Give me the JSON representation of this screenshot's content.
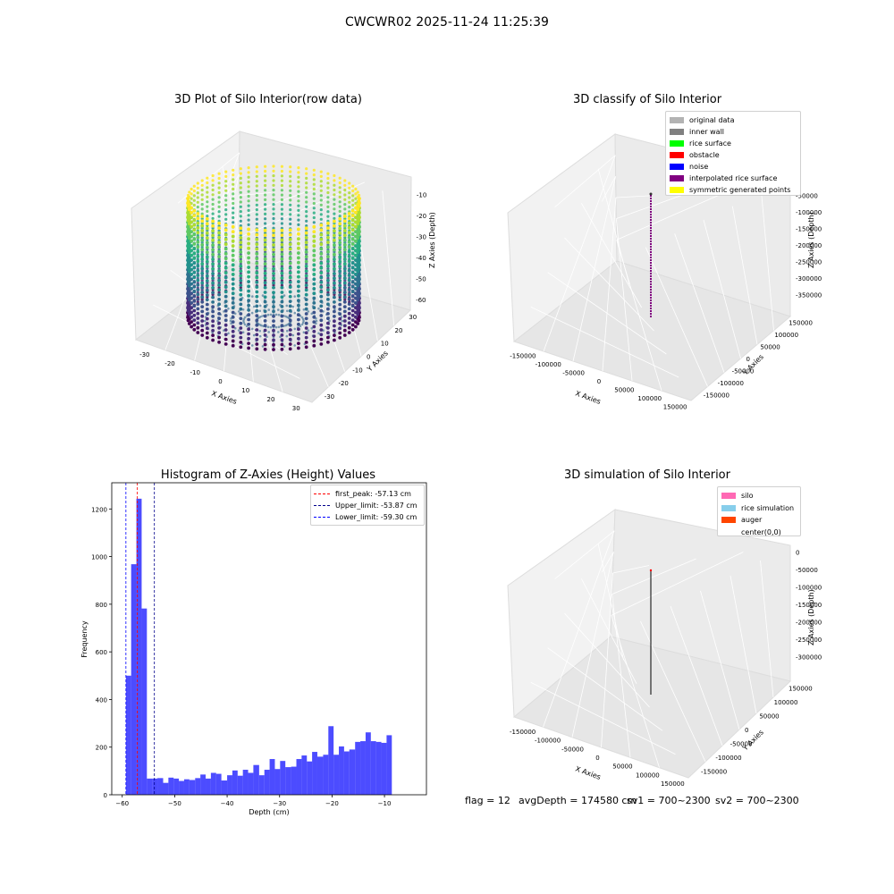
{
  "suptitle": "CWCWR02 2025-11-24 11:25:39",
  "panels": {
    "raw": {
      "title": "3D Plot of Silo Interior(row data)",
      "xlabel": "X Axies",
      "ylabel": "Y Axies",
      "zlabel": "Z Axies (Depth)",
      "xticks": [
        "-30",
        "-20",
        "-10",
        "0",
        "10",
        "20",
        "30"
      ],
      "yticks": [
        "-30",
        "-20",
        "-10",
        "0",
        "10",
        "20",
        "30"
      ],
      "zticks": [
        "-10",
        "-20",
        "-30",
        "-40",
        "-50",
        "-60"
      ]
    },
    "classify": {
      "title": "3D classify of Silo Interior",
      "xlabel": "X Axies",
      "ylabel": "Y Axies",
      "zlabel": "Z Axies (Depth)",
      "xticks": [
        "-150000",
        "-100000",
        "-50000",
        "0",
        "50000",
        "100000",
        "150000"
      ],
      "yticks": [
        "-150000",
        "-100000",
        "-50000",
        "0",
        "50000",
        "100000",
        "150000"
      ],
      "zticks": [
        "0",
        "-50000",
        "-100000",
        "-150000",
        "-200000",
        "-250000",
        "-300000",
        "-350000"
      ],
      "legend": [
        {
          "label": "original data",
          "color": "#b3b3b3"
        },
        {
          "label": "inner wall",
          "color": "#808080"
        },
        {
          "label": "rice surface",
          "color": "#00ff00"
        },
        {
          "label": "obstacle",
          "color": "#ff0000"
        },
        {
          "label": "noise",
          "color": "#0000ff"
        },
        {
          "label": "interpolated rice surface",
          "color": "#800080"
        },
        {
          "label": "symmetric generated points",
          "color": "#ffff00"
        }
      ]
    },
    "simulation": {
      "title": "3D simulation of Silo Interior",
      "xlabel": "X Axies",
      "ylabel": "Y Axies",
      "zlabel": "Z Axies (Depth)",
      "xticks": [
        "-150000",
        "-100000",
        "-50000",
        "0",
        "50000",
        "100000",
        "150000"
      ],
      "yticks": [
        "-150000",
        "-100000",
        "-50000",
        "0",
        "50000",
        "100000",
        "150000"
      ],
      "zticks": [
        "0",
        "-50000",
        "-100000",
        "-150000",
        "-200000",
        "-250000",
        "-300000"
      ],
      "legend": [
        {
          "label": "silo",
          "color": "#ff69b4"
        },
        {
          "label": "rice simulation",
          "color": "#87ceeb"
        },
        {
          "label": "auger",
          "color": "#ff4500"
        },
        {
          "label": "center(0,0)",
          "color": "#ffffff"
        }
      ]
    }
  },
  "status": {
    "flag": "flag = 12",
    "avg_depth": "avgDepth = 174580 cm",
    "sv1": "sv1 = 700~2300",
    "sv2": "sv2 = 700~2300"
  },
  "chart_data": [
    {
      "type": "scatter",
      "title": "3D Plot of Silo Interior(row data)",
      "xlabel": "X Axies",
      "ylabel": "Y Axies",
      "zlabel": "Z Axies (Depth)",
      "xlim": [
        -35,
        35
      ],
      "ylim": [
        -35,
        35
      ],
      "zlim": [
        -64,
        -5
      ],
      "colormap": "viridis",
      "grid": true
    },
    {
      "type": "scatter",
      "title": "3D classify of Silo Interior",
      "xlabel": "X Axies",
      "ylabel": "Y Axies",
      "zlabel": "Z Axies (Depth)",
      "xlim": [
        -180000,
        180000
      ],
      "ylim": [
        -180000,
        180000
      ],
      "zlim": [
        -380000,
        20000
      ],
      "legend_position": "top-right",
      "grid": true
    },
    {
      "type": "bar",
      "title": "Histogram of Z-Axies (Height) Values",
      "xlabel": "Depth (cm)",
      "ylabel": "Frequency",
      "xlim": [
        -62,
        -2
      ],
      "ylim": [
        0,
        1310
      ],
      "bar_color": "#0000ff",
      "xticks": [
        -60,
        -50,
        -40,
        -30,
        -20,
        -10
      ],
      "yticks": [
        0,
        200,
        400,
        600,
        800,
        1000,
        1200
      ],
      "bins": [
        {
          "x0": -59.3,
          "x1": -58.3,
          "value": 500
        },
        {
          "x0": -58.3,
          "x1": -57.3,
          "value": 968
        },
        {
          "x0": -57.3,
          "x1": -56.3,
          "value": 1243
        },
        {
          "x0": -56.3,
          "x1": -55.3,
          "value": 782
        },
        {
          "x0": -55.3,
          "x1": -54.3,
          "value": 68
        },
        {
          "x0": -54.3,
          "x1": -53.3,
          "value": 68
        },
        {
          "x0": -53.3,
          "x1": -52.2,
          "value": 70
        },
        {
          "x0": -52.2,
          "x1": -51.2,
          "value": 50
        },
        {
          "x0": -51.2,
          "x1": -50.2,
          "value": 72
        },
        {
          "x0": -50.2,
          "x1": -49.2,
          "value": 68
        },
        {
          "x0": -49.2,
          "x1": -48.2,
          "value": 58
        },
        {
          "x0": -48.2,
          "x1": -47.2,
          "value": 65
        },
        {
          "x0": -47.2,
          "x1": -46.1,
          "value": 62
        },
        {
          "x0": -46.1,
          "x1": -45.1,
          "value": 70
        },
        {
          "x0": -45.1,
          "x1": -44.1,
          "value": 85
        },
        {
          "x0": -44.1,
          "x1": -43.1,
          "value": 68
        },
        {
          "x0": -43.1,
          "x1": -42.1,
          "value": 92
        },
        {
          "x0": -42.1,
          "x1": -41.1,
          "value": 88
        },
        {
          "x0": -41.1,
          "x1": -40.0,
          "value": 60
        },
        {
          "x0": -40.0,
          "x1": -39.0,
          "value": 82
        },
        {
          "x0": -39.0,
          "x1": -38.0,
          "value": 102
        },
        {
          "x0": -38.0,
          "x1": -37.0,
          "value": 80
        },
        {
          "x0": -37.0,
          "x1": -36.0,
          "value": 105
        },
        {
          "x0": -36.0,
          "x1": -35.0,
          "value": 92
        },
        {
          "x0": -35.0,
          "x1": -33.9,
          "value": 125
        },
        {
          "x0": -33.9,
          "x1": -32.9,
          "value": 82
        },
        {
          "x0": -32.9,
          "x1": -31.9,
          "value": 105
        },
        {
          "x0": -31.9,
          "x1": -30.9,
          "value": 150
        },
        {
          "x0": -30.9,
          "x1": -29.9,
          "value": 108
        },
        {
          "x0": -29.9,
          "x1": -28.9,
          "value": 142
        },
        {
          "x0": -28.9,
          "x1": -27.8,
          "value": 116
        },
        {
          "x0": -27.8,
          "x1": -26.8,
          "value": 118
        },
        {
          "x0": -26.8,
          "x1": -25.8,
          "value": 150
        },
        {
          "x0": -25.8,
          "x1": -24.8,
          "value": 165
        },
        {
          "x0": -24.8,
          "x1": -23.8,
          "value": 140
        },
        {
          "x0": -23.8,
          "x1": -22.8,
          "value": 180
        },
        {
          "x0": -22.8,
          "x1": -21.7,
          "value": 160
        },
        {
          "x0": -21.7,
          "x1": -20.7,
          "value": 168
        },
        {
          "x0": -20.7,
          "x1": -19.7,
          "value": 288
        },
        {
          "x0": -19.7,
          "x1": -18.7,
          "value": 168
        },
        {
          "x0": -18.7,
          "x1": -17.7,
          "value": 203
        },
        {
          "x0": -17.7,
          "x1": -16.7,
          "value": 182
        },
        {
          "x0": -16.7,
          "x1": -15.6,
          "value": 190
        },
        {
          "x0": -15.6,
          "x1": -14.6,
          "value": 222
        },
        {
          "x0": -14.6,
          "x1": -13.6,
          "value": 225
        },
        {
          "x0": -13.6,
          "x1": -12.6,
          "value": 262
        },
        {
          "x0": -12.6,
          "x1": -11.6,
          "value": 225
        },
        {
          "x0": -11.6,
          "x1": -10.6,
          "value": 222
        },
        {
          "x0": -10.6,
          "x1": -9.6,
          "value": 218
        },
        {
          "x0": -9.6,
          "x1": -8.6,
          "value": 250
        }
      ],
      "vlines": [
        {
          "x": -57.13,
          "color": "#ff0000",
          "label": "first_peak: -57.13 cm"
        },
        {
          "x": -53.87,
          "color": "#00008b",
          "label": "Upper_limit: -53.87 cm"
        },
        {
          "x": -59.3,
          "color": "#0000ff",
          "label": "Lower_limit: -59.30 cm"
        }
      ],
      "legend_position": "top-right"
    },
    {
      "type": "line",
      "title": "3D simulation of Silo Interior",
      "xlabel": "X Axies",
      "ylabel": "Y Axies",
      "zlabel": "Z Axies (Depth)",
      "xlim": [
        -180000,
        180000
      ],
      "ylim": [
        -180000,
        180000
      ],
      "zlim": [
        -320000,
        10000
      ],
      "legend_position": "top-right",
      "grid": true
    }
  ]
}
